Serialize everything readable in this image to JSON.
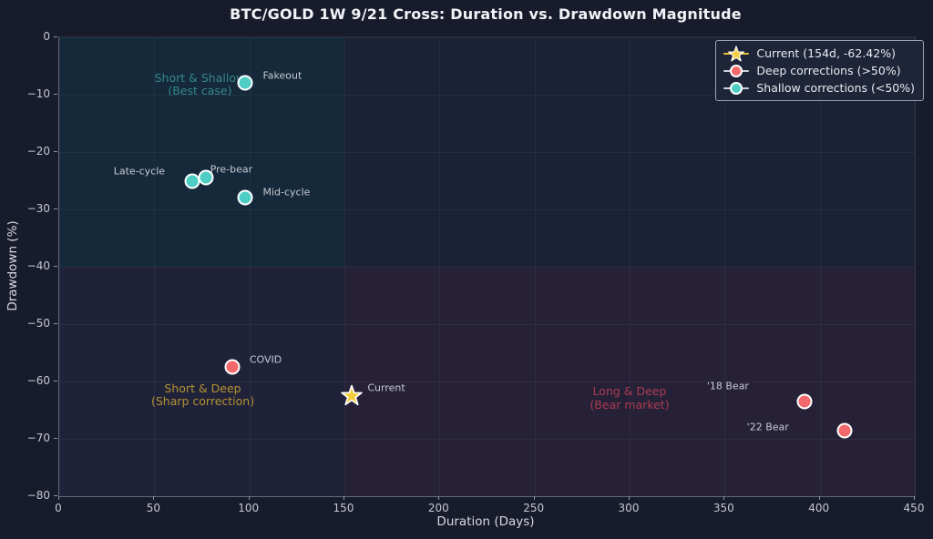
{
  "title": "BTC/GOLD 1W 9/21 Cross: Duration vs. Drawdown Magnitude",
  "colors": {
    "figure_bg": "#181b2b",
    "quadrant_top_left": "#15293a",
    "quadrant_top_right": "#1b2236",
    "quadrant_bottom_left": "#20223a",
    "quadrant_bottom_right": "#272138",
    "shallow_marker": "#4ecdc4",
    "deep_marker": "#f3696b",
    "current_marker": "#f6cd3d",
    "marker_edge": "#ffffff",
    "annotation_text": "#c6c9d3",
    "tick_text": "#c4c7d1",
    "title_text": "#f2f3f7",
    "legend_bg": "#1f2539",
    "legend_border": "#9aa2b4",
    "legend_text": "#e8eaf0"
  },
  "chart_data": {
    "type": "scatter",
    "title": "BTC/GOLD 1W 9/21 Cross: Duration vs. Drawdown Magnitude",
    "xlabel": "Duration (Days)",
    "ylabel": "Drawdown (%)",
    "xlim": [
      0,
      450
    ],
    "ylim": [
      -80,
      0
    ],
    "x_ticks": [
      0,
      50,
      100,
      150,
      200,
      250,
      300,
      350,
      400,
      450
    ],
    "y_ticks": [
      0,
      -10,
      -20,
      -30,
      -40,
      -50,
      -60,
      -70,
      -80
    ],
    "grid": true,
    "legend_position": "upper right",
    "quadrant_split": {
      "x": 150,
      "y": -40
    },
    "legend": [
      {
        "label": "Current (154d, -62.42%)",
        "marker": "star",
        "color": "#f6cd3d",
        "line_color": "#e8bf3a"
      },
      {
        "label": "Deep corrections (>50%)",
        "marker": "circle",
        "color": "#f3696b",
        "line_color": "#cdd1da"
      },
      {
        "label": "Shallow corrections (<50%)",
        "marker": "circle",
        "color": "#4ecdc4",
        "line_color": "#cdd1da"
      }
    ],
    "series": [
      {
        "name": "Shallow corrections (<50%)",
        "marker": "circle",
        "color": "#4ecdc4",
        "points": [
          {
            "label": "Fakeout",
            "x": 98,
            "y": -8,
            "anchor": "start",
            "dx": 19,
            "dy": -8
          },
          {
            "label": "Late-cycle",
            "x": 70,
            "y": -25,
            "anchor": "end",
            "dx": -30,
            "dy": -11
          },
          {
            "label": "Pre-bear",
            "x": 77,
            "y": -24.5,
            "anchor": "start",
            "dx": 5,
            "dy": -9
          },
          {
            "label": "Mid-cycle",
            "x": 98,
            "y": -28,
            "anchor": "start",
            "dx": 19,
            "dy": -6
          }
        ]
      },
      {
        "name": "Deep corrections (>50%)",
        "marker": "circle",
        "color": "#f3696b",
        "points": [
          {
            "label": "COVID",
            "x": 91,
            "y": -57.5,
            "anchor": "start",
            "dx": 19,
            "dy": -8
          },
          {
            "label": "'18 Bear",
            "x": 392,
            "y": -63.5,
            "anchor": "end",
            "dx": -61,
            "dy": -17
          },
          {
            "label": "'22 Bear",
            "x": 413,
            "y": -68.5,
            "anchor": "end",
            "dx": -61,
            "dy": -4
          }
        ]
      },
      {
        "name": "Current",
        "marker": "star",
        "color": "#f6cd3d",
        "points": [
          {
            "label": "Current",
            "x": 154,
            "y": -62.42,
            "anchor": "start",
            "dx": 17,
            "dy": -8
          }
        ]
      }
    ],
    "quadrant_labels": [
      {
        "lines": [
          "Short & Shallow",
          "(Best case)"
        ],
        "x": 74,
        "y": -8.2,
        "color": "#35868d"
      },
      {
        "lines": [
          "Short & Deep",
          "(Sharp correction)"
        ],
        "x": 75.5,
        "y": -62.4,
        "color": "#b3932f"
      },
      {
        "lines": [
          "Long & Deep",
          "(Bear market)"
        ],
        "x": 300,
        "y": -62.9,
        "color": "#aa3c50"
      }
    ]
  }
}
